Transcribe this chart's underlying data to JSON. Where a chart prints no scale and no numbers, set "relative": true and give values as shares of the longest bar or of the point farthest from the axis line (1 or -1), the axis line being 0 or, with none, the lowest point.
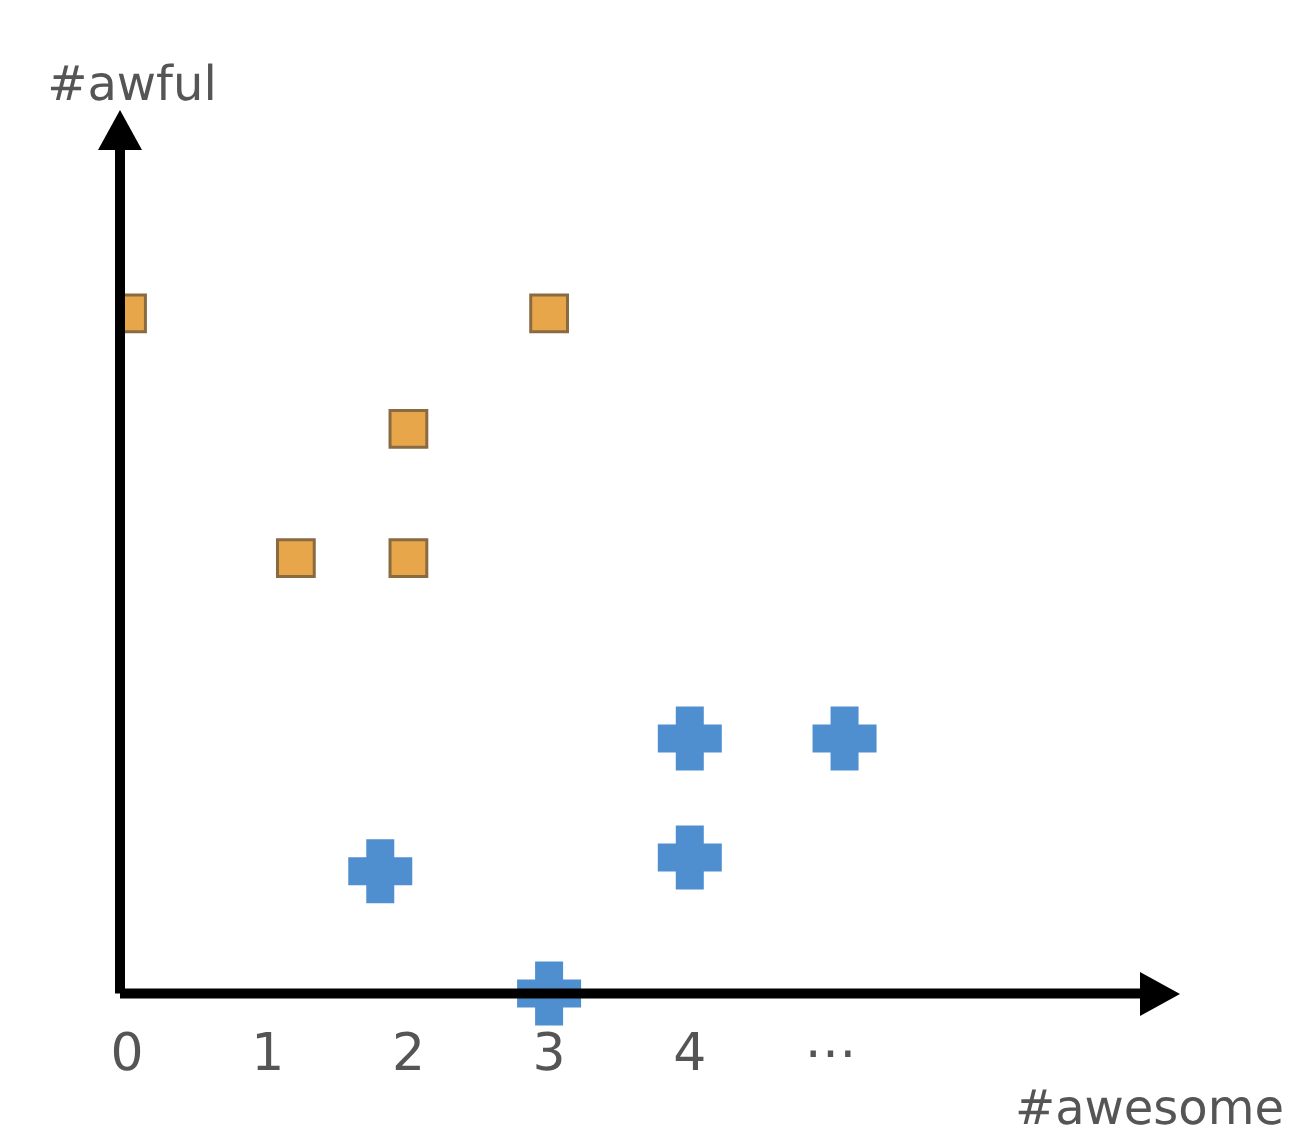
{
  "chart_data": {
    "type": "scatter",
    "xlabel": "#awesome",
    "ylabel": "#awful",
    "relative": true,
    "xlim": [
      -0.05,
      7.2
    ],
    "xticks": [
      0,
      1,
      2,
      3,
      4,
      {
        "value": 5,
        "label": "⋯"
      }
    ],
    "series": [
      {
        "color": "#e8a64a",
        "marker": "square",
        "x": [
          0,
          3,
          2,
          1.2,
          2
        ],
        "values": [
          1,
          1,
          0.83,
          0.64,
          0.64
        ]
      },
      {
        "color": "#4f8fd0",
        "marker": "cross",
        "x": [
          4,
          5.1,
          1.8,
          4,
          3
        ],
        "values": [
          0.375,
          0.375,
          0.18,
          0.2,
          0
        ]
      }
    ]
  }
}
